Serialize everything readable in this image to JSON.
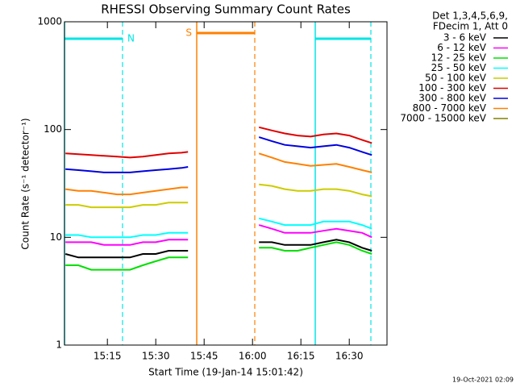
{
  "chart_data": {
    "type": "line",
    "title": "RHESSI Observing Summary Count Rates",
    "xlabel": "Start Time (19-Jan-14 15:01:42)",
    "ylabel": "Count Rate (s⁻¹ detector⁻¹)",
    "legend_header": [
      "Det 1,3,4,5,6,9,",
      "FDecim 1, Att 0"
    ],
    "footer": "19-Oct-2021 02:09",
    "log_y": true,
    "legend": "outside-right",
    "xlim": [
      901.7,
      1001.7
    ],
    "xticks": [
      {
        "value": 915,
        "label": "15:15"
      },
      {
        "value": 930,
        "label": "15:30"
      },
      {
        "value": 945,
        "label": "15:45"
      },
      {
        "value": 960,
        "label": "16:00"
      },
      {
        "value": 975,
        "label": "16:15"
      },
      {
        "value": 990,
        "label": "16:30"
      }
    ],
    "ylim": [
      1,
      1000
    ],
    "yticks": [
      1,
      10,
      100,
      1000
    ],
    "intervals": [
      {
        "label": "N",
        "start": 901.7,
        "end": 919.7,
        "color": "#00e5e5"
      },
      {
        "label": "S",
        "start": 942.7,
        "end": 960.7,
        "color": "#ff8000"
      },
      {
        "start": 979.45,
        "end": 996.7,
        "color": "#00e5e5"
      }
    ],
    "x": [
      902,
      906,
      910,
      914,
      918,
      922,
      926,
      930,
      934,
      938,
      940,
      950,
      962,
      966,
      970,
      974,
      978,
      982,
      986,
      990,
      994,
      997
    ],
    "series": [
      {
        "name": "3 - 6 keV",
        "color": "#000000",
        "values": [
          7,
          6.5,
          6.5,
          6.5,
          6.5,
          6.5,
          7,
          7,
          7.5,
          7.5,
          7.5,
          null,
          9,
          9,
          8.5,
          8.5,
          8.5,
          9,
          9.5,
          9,
          8,
          7.5
        ]
      },
      {
        "name": "6 - 12 keV",
        "color": "#ff00ff",
        "values": [
          9,
          9,
          9,
          8.5,
          8.5,
          8.5,
          9,
          9,
          9.5,
          9.5,
          9.5,
          null,
          13,
          12,
          11,
          11,
          11,
          11.5,
          12,
          11.5,
          11,
          10
        ]
      },
      {
        "name": "12 - 25 keV",
        "color": "#00e000",
        "values": [
          5.5,
          5.5,
          5,
          5,
          5,
          5,
          5.5,
          6,
          6.5,
          6.5,
          6.5,
          null,
          8,
          8,
          7.5,
          7.5,
          8,
          8.5,
          9,
          8.5,
          7.5,
          7
        ]
      },
      {
        "name": "25 - 50 keV",
        "color": "#00ffff",
        "values": [
          10.5,
          10.5,
          10,
          10,
          10,
          10,
          10.5,
          10.5,
          11,
          11,
          11,
          null,
          15,
          14,
          13,
          13,
          13,
          14,
          14,
          14,
          13,
          12
        ]
      },
      {
        "name": "50 - 100 keV",
        "color": "#cccc00",
        "values": [
          20,
          20,
          19,
          19,
          19,
          19,
          20,
          20,
          21,
          21,
          21,
          null,
          31,
          30,
          28,
          27,
          27,
          28,
          28,
          27,
          25,
          24
        ]
      },
      {
        "name": "100 - 300 keV",
        "color": "#e00000",
        "values": [
          60,
          59,
          58,
          57,
          56,
          55,
          56,
          58,
          60,
          61,
          62,
          null,
          105,
          98,
          92,
          88,
          86,
          90,
          92,
          88,
          80,
          75
        ]
      },
      {
        "name": "300 - 800 keV",
        "color": "#0000e0",
        "values": [
          43,
          42,
          41,
          40,
          40,
          40,
          41,
          42,
          43,
          44,
          45,
          null,
          85,
          78,
          72,
          70,
          68,
          70,
          72,
          68,
          62,
          58
        ]
      },
      {
        "name": "800 - 7000 keV",
        "color": "#ff8000",
        "values": [
          28,
          27,
          27,
          26,
          25,
          25,
          26,
          27,
          28,
          29,
          29,
          null,
          60,
          55,
          50,
          48,
          46,
          47,
          48,
          45,
          42,
          40
        ]
      },
      {
        "name": "7000 - 15000 keV",
        "color": "#808000",
        "values": [
          null,
          null,
          null,
          null,
          null,
          null,
          null,
          null,
          null,
          null,
          null,
          null,
          null,
          null,
          null,
          null,
          null,
          null,
          null,
          null,
          null,
          null
        ]
      }
    ]
  }
}
